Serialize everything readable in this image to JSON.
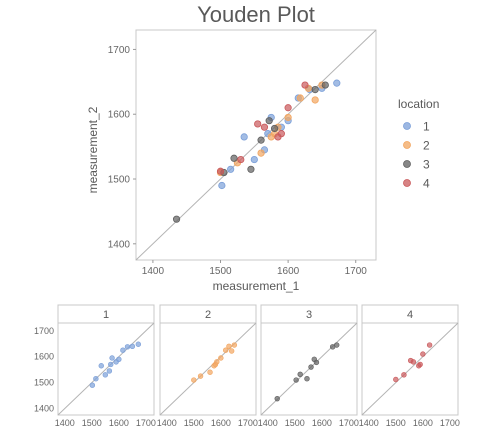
{
  "chart_data": {
    "type": "scatter",
    "title": "Youden Plot",
    "xlabel": "measurement_1",
    "ylabel": "measurement_2",
    "xlim": [
      1375,
      1730
    ],
    "ylim": [
      1375,
      1730
    ],
    "xticks": [
      1400,
      1500,
      1600,
      1700
    ],
    "yticks": [
      1400,
      1500,
      1600,
      1700
    ],
    "reference_line": "y = x",
    "grid": false,
    "legend": {
      "title": "location",
      "placement": "right"
    },
    "colors": {
      "1": "#7b9fd8",
      "2": "#f2a55f",
      "3": "#5f5f5f",
      "4": "#c9595b"
    },
    "series": [
      {
        "name": "1",
        "points": [
          [
            1502,
            1490
          ],
          [
            1515,
            1515
          ],
          [
            1535,
            1565
          ],
          [
            1550,
            1530
          ],
          [
            1565,
            1545
          ],
          [
            1570,
            1570
          ],
          [
            1575,
            1595
          ],
          [
            1590,
            1580
          ],
          [
            1600,
            1590
          ],
          [
            1615,
            1625
          ],
          [
            1632,
            1638
          ],
          [
            1650,
            1640
          ],
          [
            1672,
            1648
          ]
        ]
      },
      {
        "name": "2",
        "points": [
          [
            1500,
            1510
          ],
          [
            1525,
            1525
          ],
          [
            1560,
            1540
          ],
          [
            1575,
            1565
          ],
          [
            1580,
            1570
          ],
          [
            1585,
            1580
          ],
          [
            1600,
            1595
          ],
          [
            1618,
            1625
          ],
          [
            1630,
            1640
          ],
          [
            1640,
            1622
          ],
          [
            1650,
            1645
          ]
        ]
      },
      {
        "name": "3",
        "points": [
          [
            1435,
            1438
          ],
          [
            1505,
            1510
          ],
          [
            1520,
            1532
          ],
          [
            1545,
            1515
          ],
          [
            1560,
            1560
          ],
          [
            1572,
            1590
          ],
          [
            1580,
            1578
          ],
          [
            1640,
            1638
          ],
          [
            1655,
            1645
          ]
        ]
      },
      {
        "name": "4",
        "points": [
          [
            1500,
            1512
          ],
          [
            1530,
            1530
          ],
          [
            1555,
            1585
          ],
          [
            1565,
            1580
          ],
          [
            1585,
            1565
          ],
          [
            1590,
            1570
          ],
          [
            1600,
            1610
          ],
          [
            1625,
            1645
          ]
        ]
      }
    ],
    "facets": {
      "strip_labels": [
        "1",
        "2",
        "3",
        "4"
      ],
      "xticks": [
        1400,
        1500,
        1600,
        1700
      ],
      "yticks": [
        1400,
        1500,
        1600,
        1700
      ]
    }
  }
}
